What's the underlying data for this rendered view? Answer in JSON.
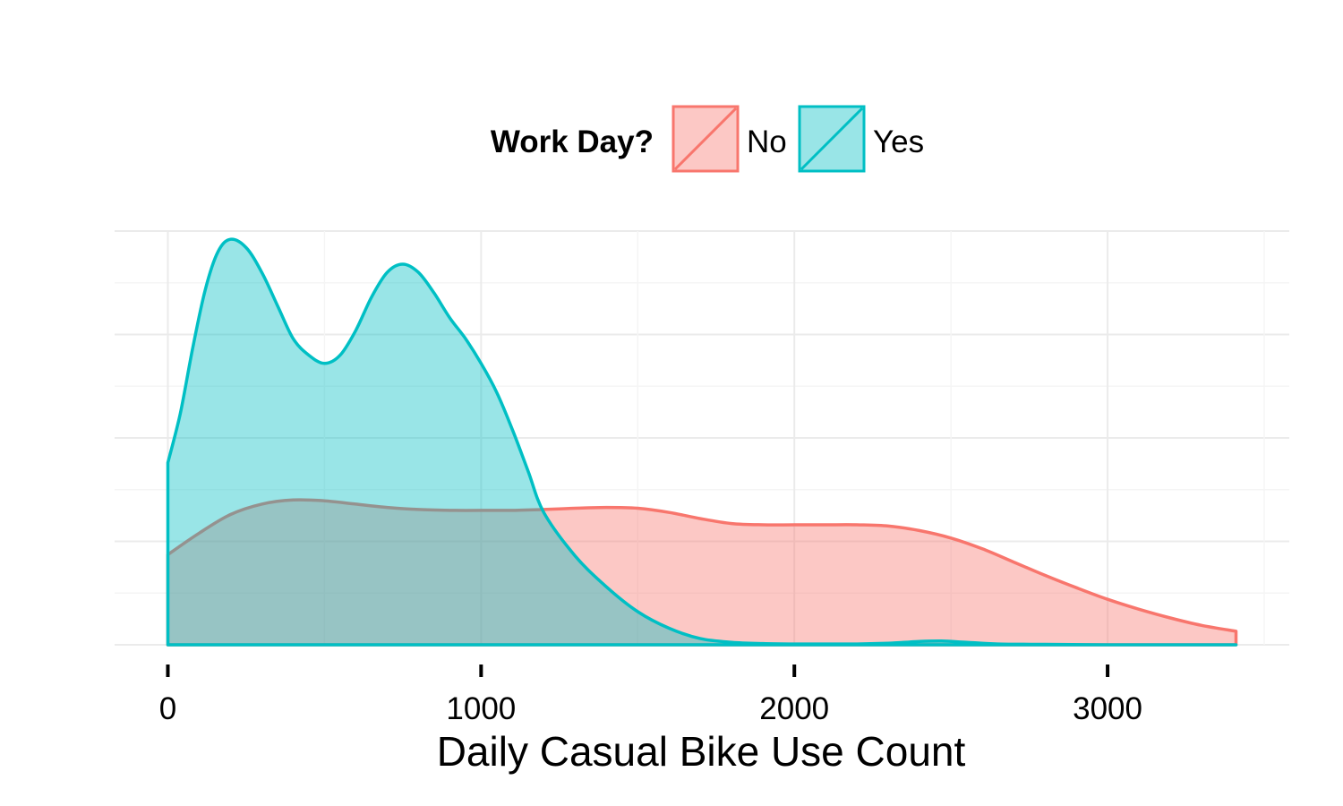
{
  "chart_data": {
    "type": "area",
    "xlabel": "Daily Casual Bike Use Count",
    "ylabel": "",
    "xlim": [
      -170,
      3580
    ],
    "ylim": [
      0,
      1.0
    ],
    "x_ticks": [
      0,
      1000,
      2000,
      3000
    ],
    "grid": true,
    "legend": {
      "title": "Work Day?",
      "position": "top",
      "entries": [
        "No",
        "Yes"
      ]
    },
    "series": [
      {
        "name": "No",
        "color": "#F8766D",
        "fill": "#F8766D",
        "x": [
          0,
          100,
          200,
          300,
          400,
          500,
          600,
          700,
          800,
          900,
          1000,
          1100,
          1200,
          1300,
          1400,
          1500,
          1600,
          1700,
          1800,
          1900,
          2000,
          2100,
          2200,
          2300,
          2400,
          2500,
          2600,
          2700,
          2800,
          2900,
          3000,
          3100,
          3200,
          3300,
          3410
        ],
        "values": [
          0.218,
          0.27,
          0.315,
          0.34,
          0.35,
          0.348,
          0.34,
          0.332,
          0.327,
          0.325,
          0.325,
          0.325,
          0.327,
          0.33,
          0.332,
          0.33,
          0.32,
          0.305,
          0.293,
          0.29,
          0.29,
          0.29,
          0.29,
          0.287,
          0.276,
          0.258,
          0.232,
          0.2,
          0.168,
          0.138,
          0.11,
          0.086,
          0.065,
          0.047,
          0.033
        ]
      },
      {
        "name": "Yes",
        "color": "#00BFC4",
        "fill": "#00BFC4",
        "x": [
          0,
          40,
          80,
          120,
          160,
          200,
          250,
          300,
          350,
          400,
          450,
          500,
          550,
          600,
          650,
          700,
          750,
          800,
          850,
          900,
          950,
          1000,
          1050,
          1100,
          1150,
          1200,
          1300,
          1400,
          1500,
          1600,
          1700,
          1800,
          1900,
          2000,
          2100,
          2200,
          2300,
          2400,
          2470,
          2550,
          2650,
          2800,
          3000,
          3200,
          3410
        ],
        "values": [
          0.44,
          0.56,
          0.72,
          0.86,
          0.95,
          0.98,
          0.96,
          0.9,
          0.82,
          0.74,
          0.7,
          0.68,
          0.7,
          0.76,
          0.84,
          0.9,
          0.92,
          0.9,
          0.85,
          0.79,
          0.74,
          0.68,
          0.61,
          0.52,
          0.42,
          0.32,
          0.215,
          0.14,
          0.08,
          0.04,
          0.015,
          0.006,
          0.003,
          0.002,
          0.002,
          0.002,
          0.004,
          0.008,
          0.009,
          0.006,
          0.002,
          0.001,
          0.0,
          0.0,
          0.0
        ]
      }
    ]
  }
}
